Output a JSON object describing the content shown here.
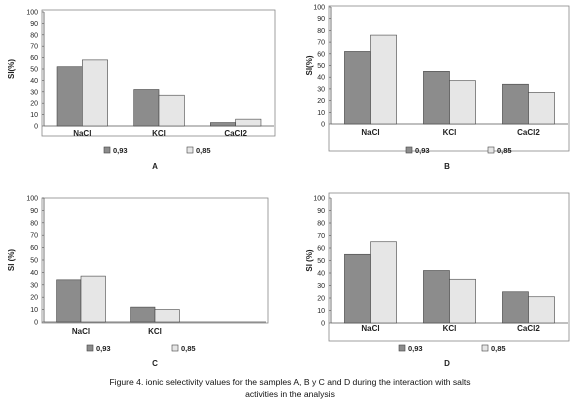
{
  "colors": {
    "series_093": "#8c8c8c",
    "series_085": "#e6e6e6",
    "bar_stroke": "#444444",
    "frame": "#888888"
  },
  "caption": {
    "line1": "Figure 4. ionic selectivity values for the samples A, B y C and D during the interaction with salts",
    "line2": "activities in the analysis"
  },
  "chart_data": [
    {
      "type": "bar",
      "panel_label": "A",
      "ylabel": "SI(%)",
      "ylim": [
        0,
        100
      ],
      "yticks": [
        0,
        10,
        20,
        30,
        40,
        50,
        60,
        70,
        80,
        90,
        100
      ],
      "categories": [
        "NaCl",
        "KCl",
        "CaCl2"
      ],
      "series": [
        {
          "name": "0,93",
          "values": [
            52,
            32,
            3
          ]
        },
        {
          "name": "0,85",
          "values": [
            58,
            27,
            6
          ]
        }
      ],
      "legend": "bottom"
    },
    {
      "type": "bar",
      "panel_label": "B",
      "ylabel": "SI(%)",
      "ylim": [
        0,
        100
      ],
      "yticks": [
        0,
        10,
        20,
        30,
        40,
        50,
        60,
        70,
        80,
        90,
        100
      ],
      "categories": [
        "NaCl",
        "KCl",
        "CaCl2"
      ],
      "series": [
        {
          "name": "0,93",
          "values": [
            62,
            45,
            34
          ]
        },
        {
          "name": "0,85",
          "values": [
            76,
            37,
            27
          ]
        }
      ],
      "legend": "bottom"
    },
    {
      "type": "bar",
      "panel_label": "C",
      "ylabel": "SI (%)",
      "ylim": [
        0,
        100
      ],
      "yticks": [
        0,
        10,
        20,
        30,
        40,
        50,
        60,
        70,
        80,
        90,
        100
      ],
      "categories": [
        "NaCl",
        "KCl"
      ],
      "series": [
        {
          "name": "0,93",
          "values": [
            34,
            12
          ]
        },
        {
          "name": "0,85",
          "values": [
            37,
            10
          ]
        }
      ],
      "legend": "bottom"
    },
    {
      "type": "bar",
      "panel_label": "D",
      "ylabel": "SI (%)",
      "ylim": [
        0,
        100
      ],
      "yticks": [
        0,
        10,
        20,
        30,
        40,
        50,
        60,
        70,
        80,
        90,
        100
      ],
      "categories": [
        "NaCl",
        "KCl",
        "CaCl2"
      ],
      "series": [
        {
          "name": "0,93",
          "values": [
            55,
            42,
            25
          ]
        },
        {
          "name": "0,85",
          "values": [
            65,
            35,
            21
          ]
        }
      ],
      "legend": "bottom"
    }
  ]
}
